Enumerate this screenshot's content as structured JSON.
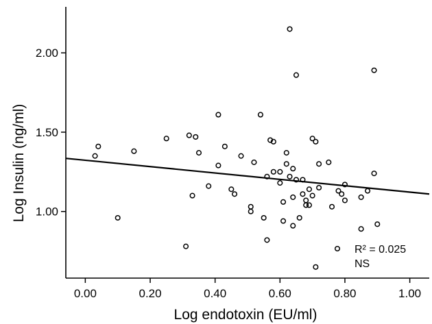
{
  "chart_data": {
    "type": "scatter",
    "xlabel": "Log endotoxin (EU/ml)",
    "ylabel": "Log Insulin (ng/ml)",
    "xlim": [
      -0.06,
      1.06
    ],
    "ylim": [
      0.58,
      2.29
    ],
    "x_ticks": [
      0.0,
      0.2,
      0.4,
      0.6,
      0.8,
      1.0
    ],
    "x_tick_labels": [
      "0.00",
      "0.20",
      "0.40",
      "0.60",
      "0.80",
      "1.00"
    ],
    "y_ticks": [
      1.0,
      1.5,
      2.0
    ],
    "y_tick_labels": [
      "1.00",
      "1.50",
      "2.00"
    ],
    "grid": false,
    "marker": "open-circle",
    "regression_line": {
      "x": [
        -0.06,
        1.06
      ],
      "y": [
        1.335,
        1.11
      ]
    },
    "annotations": {
      "r_squared": "R² = 0.025",
      "significance": "NS"
    },
    "legend_marker": "open-circle",
    "points": [
      {
        "x": 0.03,
        "y": 1.35
      },
      {
        "x": 0.04,
        "y": 1.41
      },
      {
        "x": 0.1,
        "y": 0.96
      },
      {
        "x": 0.15,
        "y": 1.38
      },
      {
        "x": 0.25,
        "y": 1.46
      },
      {
        "x": 0.31,
        "y": 0.78
      },
      {
        "x": 0.32,
        "y": 1.48
      },
      {
        "x": 0.33,
        "y": 1.1
      },
      {
        "x": 0.34,
        "y": 1.47
      },
      {
        "x": 0.35,
        "y": 1.37
      },
      {
        "x": 0.38,
        "y": 1.16
      },
      {
        "x": 0.41,
        "y": 1.61
      },
      {
        "x": 0.41,
        "y": 1.29
      },
      {
        "x": 0.43,
        "y": 1.41
      },
      {
        "x": 0.45,
        "y": 1.14
      },
      {
        "x": 0.46,
        "y": 1.11
      },
      {
        "x": 0.48,
        "y": 1.35
      },
      {
        "x": 0.51,
        "y": 1.0
      },
      {
        "x": 0.51,
        "y": 1.03
      },
      {
        "x": 0.52,
        "y": 1.31
      },
      {
        "x": 0.54,
        "y": 1.61
      },
      {
        "x": 0.55,
        "y": 0.96
      },
      {
        "x": 0.56,
        "y": 0.82
      },
      {
        "x": 0.56,
        "y": 1.22
      },
      {
        "x": 0.57,
        "y": 1.45
      },
      {
        "x": 0.58,
        "y": 1.44
      },
      {
        "x": 0.58,
        "y": 1.25
      },
      {
        "x": 0.6,
        "y": 1.25
      },
      {
        "x": 0.6,
        "y": 1.18
      },
      {
        "x": 0.61,
        "y": 1.06
      },
      {
        "x": 0.61,
        "y": 0.94
      },
      {
        "x": 0.62,
        "y": 1.3
      },
      {
        "x": 0.62,
        "y": 1.37
      },
      {
        "x": 0.63,
        "y": 1.22
      },
      {
        "x": 0.63,
        "y": 2.15
      },
      {
        "x": 0.64,
        "y": 1.27
      },
      {
        "x": 0.64,
        "y": 1.09
      },
      {
        "x": 0.64,
        "y": 0.91
      },
      {
        "x": 0.65,
        "y": 1.2
      },
      {
        "x": 0.65,
        "y": 1.86
      },
      {
        "x": 0.66,
        "y": 0.96
      },
      {
        "x": 0.67,
        "y": 1.11
      },
      {
        "x": 0.67,
        "y": 1.2
      },
      {
        "x": 0.68,
        "y": 1.04
      },
      {
        "x": 0.68,
        "y": 1.07
      },
      {
        "x": 0.69,
        "y": 1.14
      },
      {
        "x": 0.69,
        "y": 1.04
      },
      {
        "x": 0.7,
        "y": 1.46
      },
      {
        "x": 0.7,
        "y": 1.1
      },
      {
        "x": 0.71,
        "y": 1.44
      },
      {
        "x": 0.71,
        "y": 0.65
      },
      {
        "x": 0.72,
        "y": 1.3
      },
      {
        "x": 0.72,
        "y": 1.15
      },
      {
        "x": 0.75,
        "y": 1.31
      },
      {
        "x": 0.76,
        "y": 1.03
      },
      {
        "x": 0.78,
        "y": 1.13
      },
      {
        "x": 0.79,
        "y": 1.11
      },
      {
        "x": 0.8,
        "y": 1.17
      },
      {
        "x": 0.8,
        "y": 1.07
      },
      {
        "x": 0.85,
        "y": 0.89
      },
      {
        "x": 0.85,
        "y": 1.09
      },
      {
        "x": 0.87,
        "y": 1.13
      },
      {
        "x": 0.89,
        "y": 1.89
      },
      {
        "x": 0.89,
        "y": 1.24
      },
      {
        "x": 0.9,
        "y": 0.92
      }
    ]
  }
}
